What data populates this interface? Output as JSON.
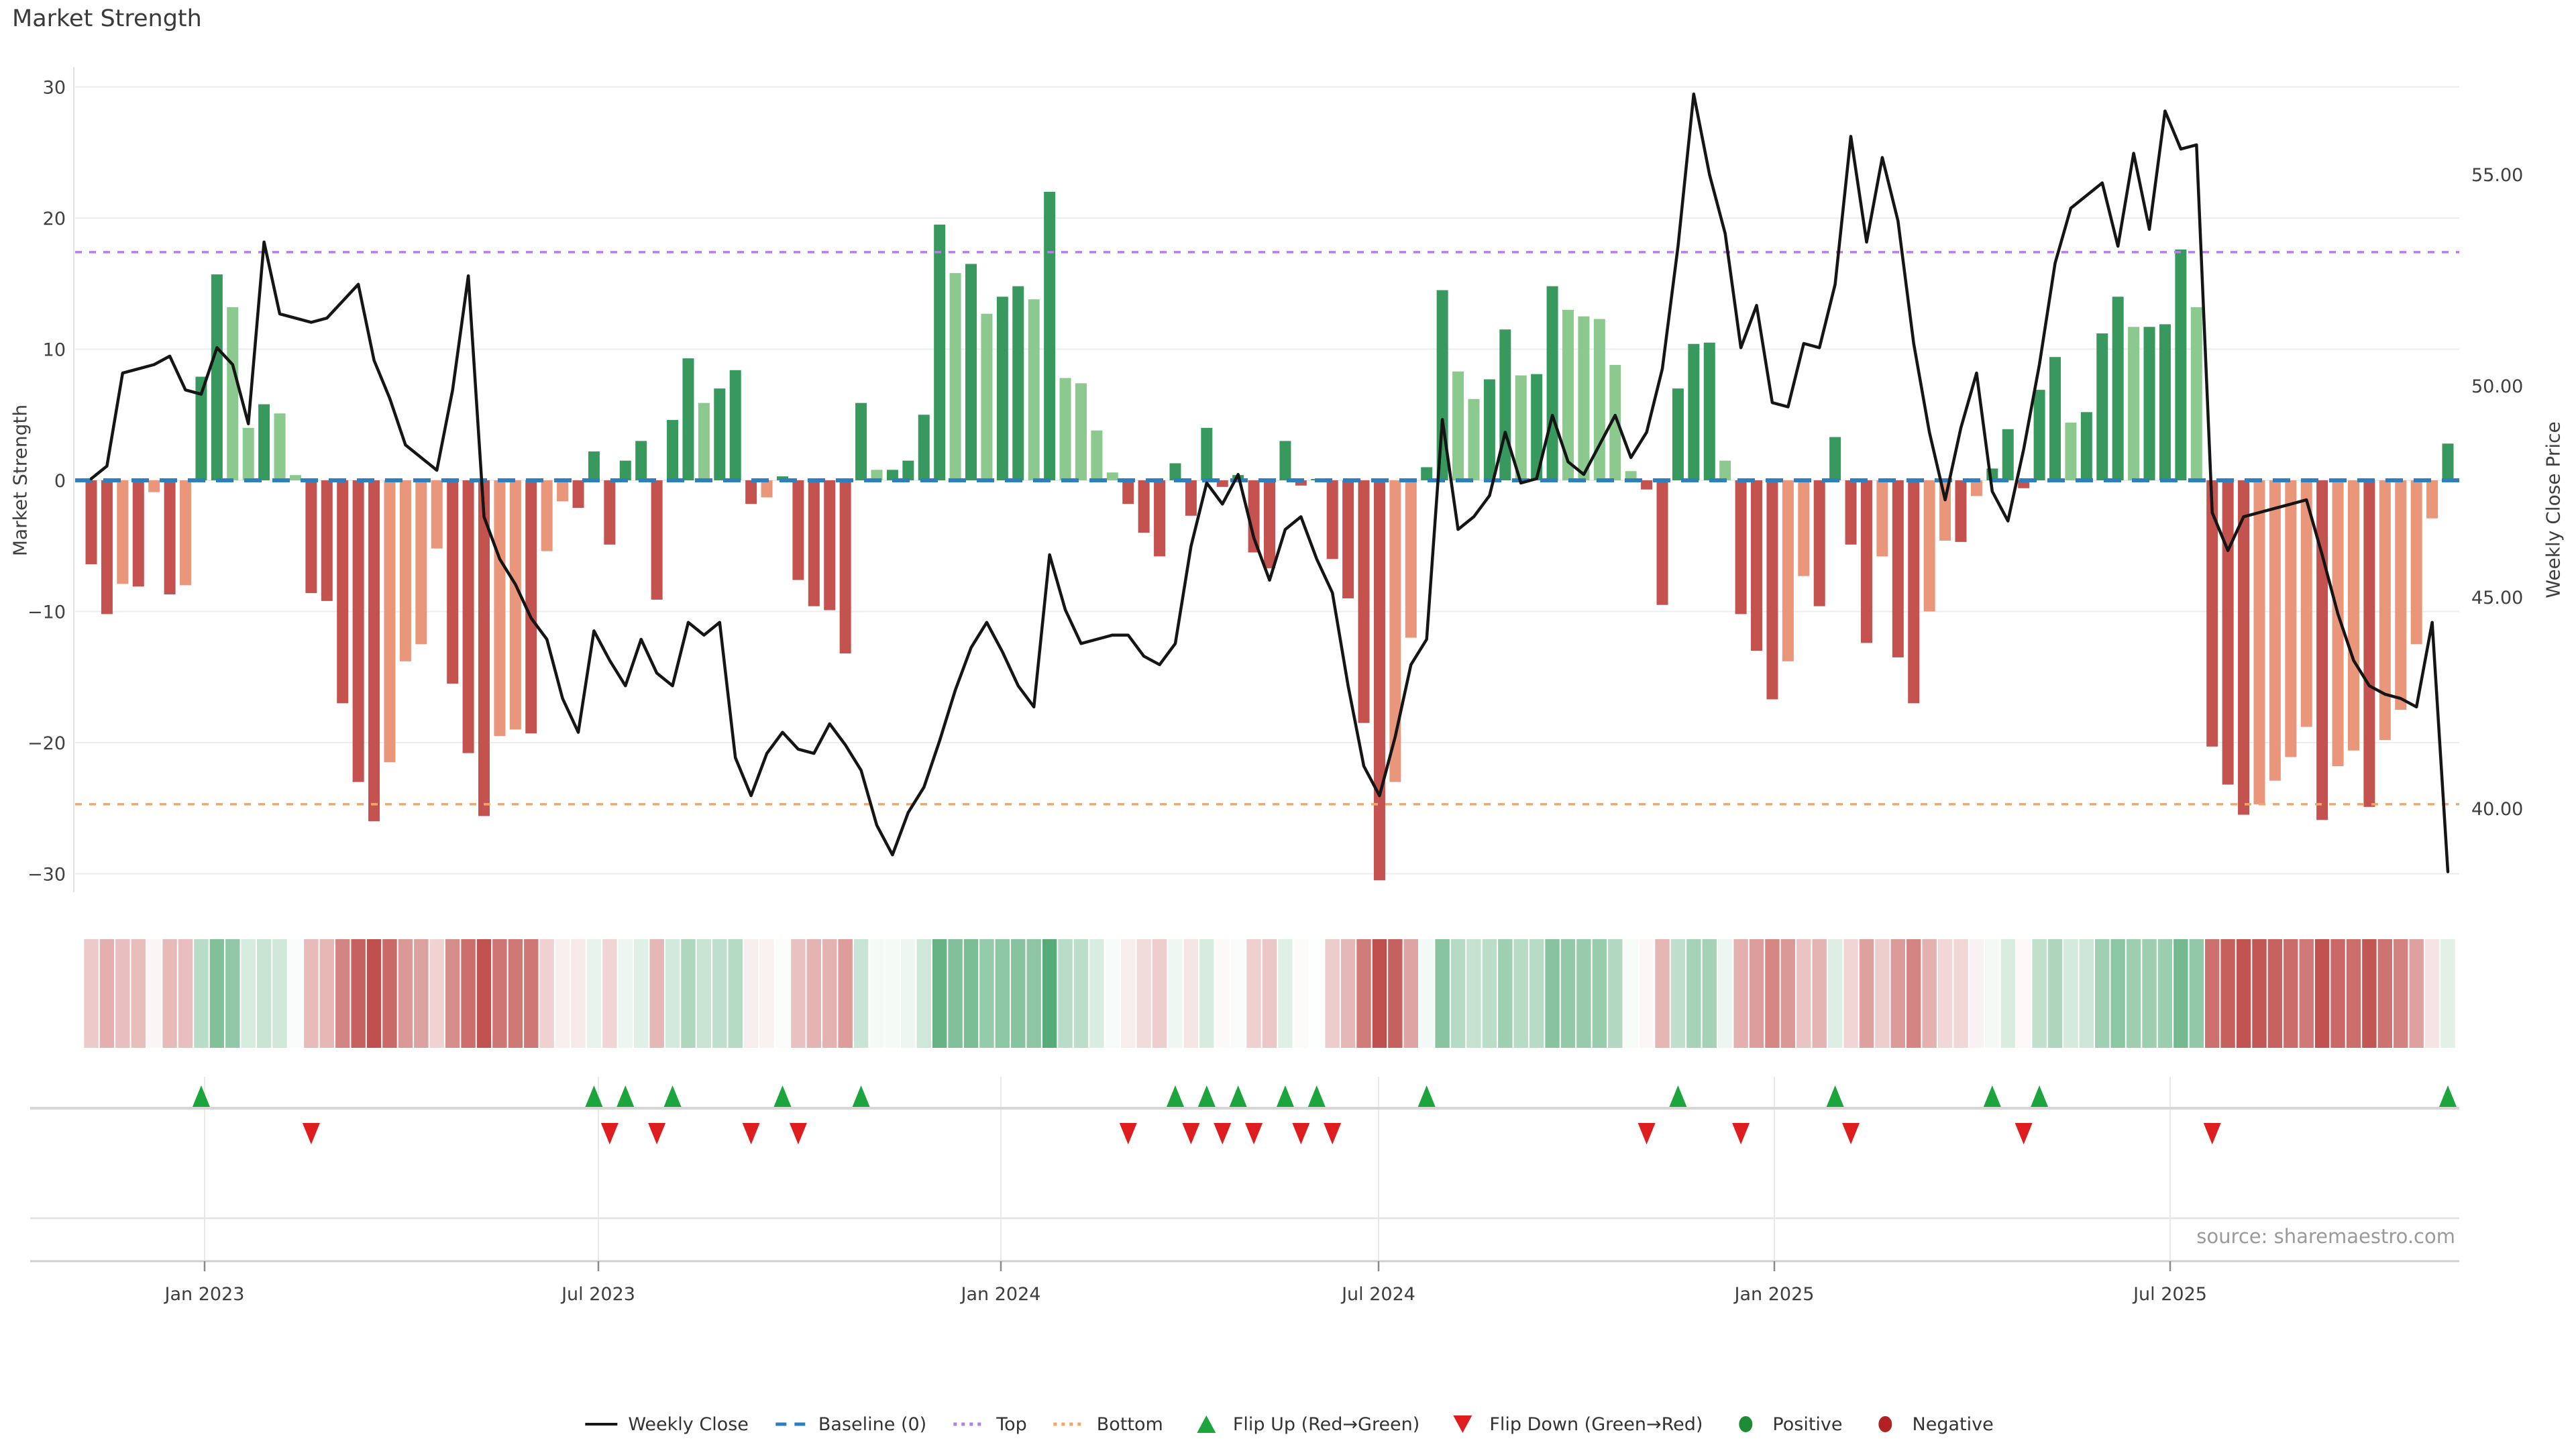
{
  "title": "Market Strength",
  "source": "source: sharemaestro.com",
  "axes": {
    "left_title": "Market Strength",
    "right_title": "Weekly Close Price",
    "left_ticks": [
      "30",
      "20",
      "10",
      "0",
      "−10",
      "−20",
      "−30"
    ],
    "left_tick_values": [
      30,
      20,
      10,
      0,
      -10,
      -20,
      -30
    ],
    "right_ticks": [
      "55.00",
      "50.00",
      "45.00",
      "40.00"
    ],
    "right_tick_values": [
      55,
      50,
      45,
      40
    ],
    "x_ticks": [
      "Jan 2023",
      "Jul 2023",
      "Jan 2024",
      "Jul 2024",
      "Jan 2025",
      "Jul 2025"
    ]
  },
  "colors": {
    "bar_positive_strong": "#37995E",
    "bar_positive_weak": "#8CC98F",
    "bar_negative_strong": "#C4524E",
    "bar_negative_weak": "#E9967A",
    "price_line": "#151515",
    "baseline": "#2E7FBF",
    "top_line": "#B97CEC",
    "bottom_line": "#F3A767",
    "flip_up": "#1CA53C",
    "flip_down": "#DE1E1E",
    "positive_dot": "#1E8C35",
    "negative_dot": "#B22222",
    "grid": "#EDEDED",
    "panel_line": "#D6D6D6",
    "heat_pos_base": "#3D9E63",
    "heat_neg_base": "#C0504D"
  },
  "legend": {
    "items": [
      {
        "label": "Weekly Close",
        "marker": "line",
        "color": "#151515"
      },
      {
        "label": "Baseline (0)",
        "marker": "dashes",
        "color": "#2E7FBF"
      },
      {
        "label": "Top",
        "marker": "dots",
        "color": "#B97CEC"
      },
      {
        "label": "Bottom",
        "marker": "dots",
        "color": "#F3A767"
      },
      {
        "label": "Flip Up (Red→Green)",
        "marker": "triangle-up",
        "color": "#1CA53C"
      },
      {
        "label": "Flip Down (Green→Red)",
        "marker": "triangle-down",
        "color": "#DE1E1E"
      },
      {
        "label": "Positive",
        "marker": "circle",
        "color": "#1E8C35"
      },
      {
        "label": "Negative",
        "marker": "circle",
        "color": "#B22222"
      }
    ]
  },
  "chart_data": {
    "type": "bar",
    "description": "Weekly market-strength bars (left axis) with weekly close price line (right axis), a heatmap strip of the same strength values, and flip markers where bar sign changes. X range approx Nov 2022 - Nov 2025, weekly.",
    "title": "Market Strength",
    "xlabel": "",
    "ylabel_left": "Market Strength",
    "ylabel_right": "Weekly Close Price",
    "ylim_left": [
      -32,
      31
    ],
    "ylim_right": [
      38,
      57.5
    ],
    "grid": "horizontal",
    "legend_position": "bottom-center",
    "reference_lines": {
      "baseline": 0,
      "top": 17.4,
      "bottom": -24.7
    },
    "x_tick_labels": [
      "Jan 2023",
      "Jul 2023",
      "Jan 2024",
      "Jul 2024",
      "Jan 2025",
      "Jul 2025"
    ],
    "series": [
      {
        "name": "Market Strength",
        "type": "bar",
        "values": [
          -6.4,
          -10.2,
          -7.9,
          -8.1,
          -0.9,
          -8.7,
          -8.0,
          7.9,
          15.7,
          13.2,
          4.0,
          5.8,
          5.1,
          0.4,
          -8.6,
          -9.2,
          -17.0,
          -23.0,
          -26.0,
          -21.5,
          -13.8,
          -12.5,
          -5.2,
          -15.5,
          -20.8,
          -25.6,
          -19.5,
          -19.0,
          -19.3,
          -5.4,
          -1.6,
          -2.1,
          2.2,
          -4.9,
          1.5,
          3.0,
          -9.1,
          4.6,
          9.3,
          5.9,
          7.0,
          8.4,
          -1.8,
          -1.3,
          0.3,
          -7.6,
          -9.6,
          -9.9,
          -13.2,
          5.9,
          0.8,
          0.8,
          1.5,
          5.0,
          19.5,
          15.8,
          16.5,
          12.7,
          14.0,
          14.8,
          13.8,
          22.0,
          7.8,
          7.4,
          3.8,
          0.6,
          -1.8,
          -4.0,
          -5.8,
          1.3,
          -2.7,
          4.0,
          -0.5,
          0.4,
          -5.5,
          -6.7,
          3.0,
          -0.4,
          0.1,
          -6.0,
          -9.0,
          -18.5,
          -30.5,
          -23.0,
          -12.0,
          1.0,
          14.5,
          8.3,
          6.2,
          7.7,
          11.5,
          8.0,
          8.1,
          14.8,
          13.0,
          12.5,
          12.3,
          8.8,
          0.7,
          -0.7,
          -9.5,
          7.0,
          10.4,
          10.5,
          1.5,
          -10.2,
          -13.0,
          -16.7,
          -13.8,
          -7.3,
          -9.6,
          3.3,
          -4.9,
          -12.4,
          -5.8,
          -13.5,
          -17.0,
          -10.0,
          -4.6,
          -4.7,
          -1.2,
          0.9,
          3.9,
          -0.6,
          6.9,
          9.4,
          4.4,
          5.2,
          11.2,
          14.0,
          11.7,
          11.7,
          11.9,
          17.6,
          13.2,
          -20.3,
          -23.2,
          -25.5,
          -24.7,
          -22.9,
          -21.1,
          -18.8,
          -25.9,
          -21.8,
          -20.6,
          -24.9,
          -19.8,
          -17.5,
          -12.5,
          -2.9,
          2.8
        ]
      },
      {
        "name": "Weekly Close",
        "type": "line",
        "values": [
          47.8,
          48.1,
          50.3,
          50.4,
          50.5,
          50.7,
          49.9,
          49.8,
          50.9,
          50.5,
          49.1,
          53.4,
          51.7,
          51.6,
          51.5,
          51.6,
          52.0,
          52.4,
          50.6,
          49.7,
          48.6,
          48.3,
          48.0,
          49.9,
          52.6,
          46.9,
          45.9,
          45.3,
          44.5,
          44.0,
          42.6,
          41.8,
          44.2,
          43.5,
          42.9,
          44.0,
          43.2,
          42.9,
          44.4,
          44.1,
          44.4,
          41.2,
          40.3,
          41.3,
          41.8,
          41.4,
          41.3,
          42.0,
          41.5,
          40.9,
          39.6,
          38.9,
          39.9,
          40.5,
          41.6,
          42.8,
          43.8,
          44.4,
          43.7,
          42.9,
          42.4,
          46.0,
          44.7,
          43.9,
          44.0,
          44.1,
          44.1,
          43.6,
          43.4,
          43.9,
          46.2,
          47.7,
          47.2,
          47.9,
          46.4,
          45.4,
          46.6,
          46.9,
          45.9,
          45.1,
          42.9,
          41.0,
          40.3,
          41.7,
          43.4,
          44.0,
          49.2,
          46.6,
          46.9,
          47.4,
          48.9,
          47.7,
          47.8,
          49.3,
          48.2,
          47.9,
          48.6,
          49.3,
          48.3,
          48.9,
          50.4,
          53.3,
          56.9,
          55.0,
          53.6,
          50.9,
          51.9,
          49.6,
          49.5,
          51.0,
          50.9,
          52.4,
          55.9,
          53.4,
          55.4,
          53.9,
          51.0,
          48.9,
          47.3,
          49.0,
          50.3,
          47.5,
          46.8,
          48.5,
          50.5,
          52.9,
          54.2,
          54.5,
          54.8,
          53.3,
          55.5,
          53.7,
          56.5,
          55.6,
          55.7,
          47.0,
          46.1,
          46.9,
          47.0,
          47.1,
          47.2,
          47.3,
          46.0,
          44.6,
          43.5,
          42.9,
          42.7,
          42.6,
          42.4,
          44.4,
          38.5
        ]
      }
    ],
    "flip_up_indices": [
      7,
      32,
      34,
      37,
      44,
      49,
      69,
      71,
      73,
      76,
      78,
      85,
      101,
      111,
      121,
      124,
      150
    ],
    "flip_down_indices": [
      14,
      33,
      36,
      42,
      45,
      66,
      70,
      72,
      74,
      77,
      79,
      99,
      105,
      112,
      123,
      135
    ]
  }
}
